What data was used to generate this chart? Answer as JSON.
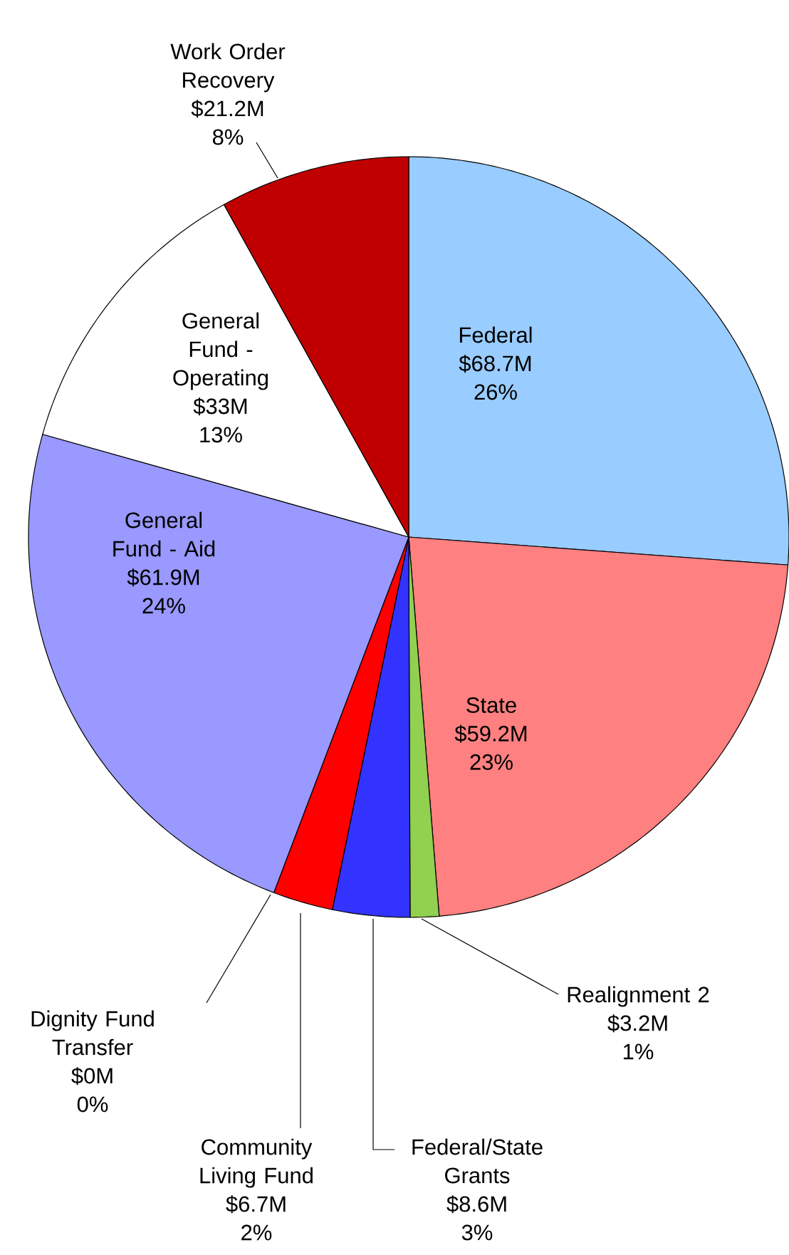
{
  "chart_data": {
    "type": "pie",
    "categories": [
      "Federal",
      "State",
      "Realignment 2",
      "Federal/State Grants",
      "Community Living Fund",
      "Dignity Fund Transfer",
      "General Fund - Aid",
      "General Fund - Operating",
      "Work Order Recovery"
    ],
    "values": [
      68.7,
      59.2,
      3.2,
      8.6,
      6.7,
      0,
      61.9,
      33,
      21.2
    ],
    "value_labels": [
      "$68.7M",
      "$59.2M",
      "$3.2M",
      "$8.6M",
      "$6.7M",
      "$0M",
      "$61.9M",
      "$33M",
      "$21.2M"
    ],
    "annotations": [
      "26%",
      "23%",
      "1%",
      "3%",
      "2%",
      "0%",
      "24%",
      "13%",
      "8%"
    ],
    "colors": [
      "#99ccff",
      "#ff8080",
      "#92d050",
      "#3333ff",
      "#ff0000",
      "#993366",
      "#9999ff",
      "#ffffff",
      "#c00000"
    ]
  }
}
